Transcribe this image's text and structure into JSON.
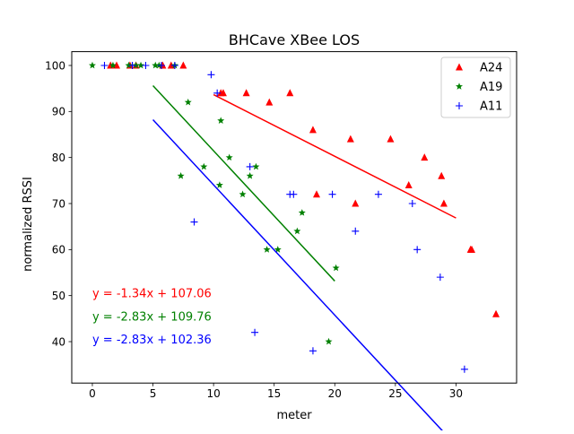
{
  "chart_data": {
    "type": "scatter",
    "title": "BHCave XBee LOS",
    "xlabel": "meter",
    "ylabel": "normalized RSSI",
    "xlim": [
      -1.7,
      35
    ],
    "ylim": [
      31,
      103
    ],
    "xticks": [
      0,
      5,
      10,
      15,
      20,
      25,
      30
    ],
    "yticks": [
      40,
      50,
      60,
      70,
      80,
      90,
      100
    ],
    "grid": false,
    "legend_position": "top-right",
    "series": [
      {
        "name": "A24",
        "color": "#ff0000",
        "marker": "triangle",
        "x": [
          1.5,
          2.0,
          3.1,
          3.6,
          5.8,
          6.5,
          7.5,
          10.6,
          10.8,
          12.7,
          14.6,
          16.3,
          18.2,
          18.5,
          21.3,
          21.7,
          24.6,
          26.1,
          27.4,
          28.8,
          29.0,
          31.2,
          31.3,
          33.3
        ],
        "y": [
          100,
          100,
          100,
          100,
          100,
          100,
          100,
          94,
          94,
          94,
          92,
          94,
          86,
          72,
          84,
          70,
          84,
          74,
          80,
          76,
          70,
          60,
          60,
          46
        ],
        "fit": {
          "slope": -1.34,
          "intercept": 107.06,
          "x_range": [
            10,
            30
          ]
        }
      },
      {
        "name": "A19",
        "color": "#008000",
        "marker": "star",
        "x": [
          0.0,
          1.7,
          3.0,
          3.6,
          4.0,
          5.2,
          5.5,
          6.8,
          7.3,
          7.9,
          9.2,
          10.5,
          10.6,
          11.3,
          12.4,
          13.0,
          13.5,
          14.4,
          15.3,
          16.9,
          17.3,
          19.5,
          20.1
        ],
        "y": [
          100,
          100,
          100,
          100,
          100,
          100,
          100,
          100,
          76,
          92,
          78,
          74,
          88,
          80,
          72,
          76,
          78,
          60,
          60,
          64,
          68,
          40,
          56
        ],
        "fit": {
          "slope": -2.83,
          "intercept": 109.76,
          "x_range": [
            5,
            20
          ]
        }
      },
      {
        "name": "A11",
        "color": "#0000ff",
        "marker": "plus",
        "x": [
          1.0,
          3.3,
          4.4,
          5.7,
          6.8,
          8.4,
          9.8,
          10.3,
          13.0,
          13.4,
          16.3,
          16.6,
          18.2,
          19.8,
          21.7,
          23.6,
          26.4,
          26.8,
          28.7,
          30.7
        ],
        "y": [
          100,
          100,
          100,
          100,
          100,
          66,
          98,
          94,
          78,
          42,
          72,
          72,
          38,
          72,
          64,
          72,
          70,
          60,
          54,
          34
        ],
        "fit": {
          "slope": -2.83,
          "intercept": 102.36,
          "x_range": [
            5,
            30
          ]
        }
      }
    ],
    "annotations": [
      {
        "text": "y = -1.34x + 107.06",
        "color": "#ff0000",
        "x": 0,
        "y": 50.5
      },
      {
        "text": "y = -2.83x + 109.76",
        "color": "#008000",
        "x": 0,
        "y": 45.5
      },
      {
        "text": "y = -2.83x + 102.36",
        "color": "#0000ff",
        "x": 0,
        "y": 40.5
      }
    ]
  }
}
